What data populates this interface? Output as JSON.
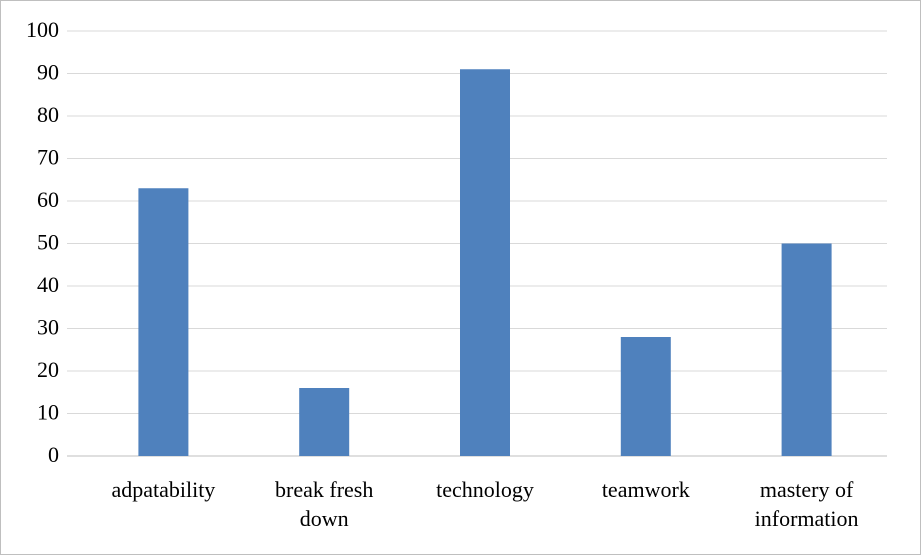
{
  "chart_data": {
    "type": "bar",
    "categories": [
      "adpatability",
      "break fresh down",
      "technology",
      "teamwork",
      "mastery of information"
    ],
    "values": [
      63,
      16,
      91,
      28,
      50
    ],
    "color": "#4f81bd",
    "ylim": [
      0,
      100
    ],
    "yticks": [
      0,
      10,
      20,
      30,
      40,
      50,
      60,
      70,
      80,
      90,
      100
    ],
    "grid": true
  }
}
